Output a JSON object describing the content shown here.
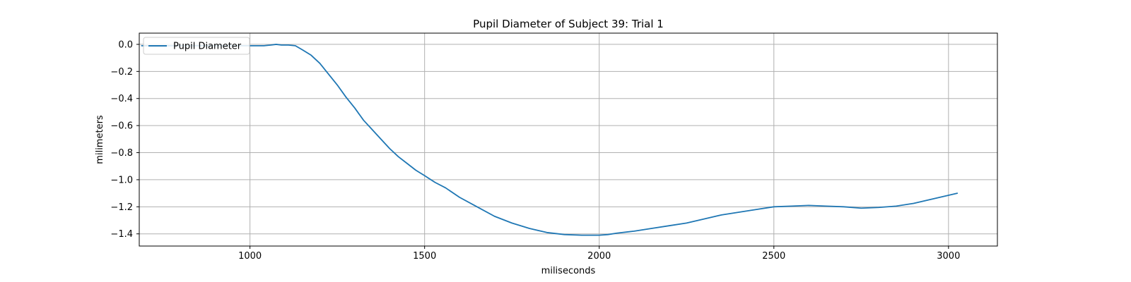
{
  "chart_data": {
    "type": "line",
    "title": "Pupil Diameter of Subject 39: Trial 1",
    "xlabel": "miliseconds",
    "ylabel": "milimeters",
    "xlim": [
      683,
      3140
    ],
    "ylim": [
      -1.49,
      0.083
    ],
    "grid": true,
    "legend": {
      "position": "upper-left"
    },
    "xticks": [
      1000,
      1500,
      2000,
      2500,
      3000
    ],
    "xtick_labels": [
      "1000",
      "1500",
      "2000",
      "2500",
      "3000"
    ],
    "yticks": [
      0.0,
      -0.2,
      -0.4,
      -0.6,
      -0.8,
      -1.0,
      -1.2,
      -1.4
    ],
    "ytick_labels": [
      "0.0",
      "−0.2",
      "−0.4",
      "−0.6",
      "−0.8",
      "−1.0",
      "−1.2",
      "−1.4"
    ],
    "colors": {
      "series": "#1f77b4",
      "grid": "#b0b0b0",
      "axis": "#000000"
    },
    "series": [
      {
        "name": "Pupil Diameter",
        "x": [
          690,
          720,
          800,
          900,
          1000,
          1040,
          1060,
          1075,
          1090,
          1110,
          1130,
          1150,
          1175,
          1200,
          1225,
          1250,
          1275,
          1300,
          1325,
          1350,
          1375,
          1400,
          1425,
          1450,
          1475,
          1500,
          1530,
          1560,
          1600,
          1650,
          1700,
          1750,
          1800,
          1850,
          1900,
          1950,
          1975,
          2000,
          2025,
          2050,
          2100,
          2150,
          2200,
          2250,
          2300,
          2350,
          2400,
          2450,
          2500,
          2550,
          2600,
          2650,
          2700,
          2750,
          2800,
          2850,
          2900,
          2950,
          3000,
          3025
        ],
        "y": [
          -0.01,
          -0.01,
          -0.01,
          -0.01,
          -0.01,
          -0.01,
          -0.005,
          0.0,
          -0.005,
          -0.005,
          -0.01,
          -0.04,
          -0.08,
          -0.14,
          -0.22,
          -0.3,
          -0.39,
          -0.47,
          -0.56,
          -0.63,
          -0.7,
          -0.77,
          -0.83,
          -0.88,
          -0.93,
          -0.97,
          -1.02,
          -1.06,
          -1.13,
          -1.2,
          -1.27,
          -1.32,
          -1.36,
          -1.39,
          -1.405,
          -1.41,
          -1.41,
          -1.41,
          -1.405,
          -1.395,
          -1.38,
          -1.36,
          -1.34,
          -1.32,
          -1.29,
          -1.26,
          -1.24,
          -1.22,
          -1.2,
          -1.195,
          -1.19,
          -1.195,
          -1.2,
          -1.21,
          -1.205,
          -1.195,
          -1.175,
          -1.145,
          -1.115,
          -1.1
        ]
      }
    ]
  }
}
